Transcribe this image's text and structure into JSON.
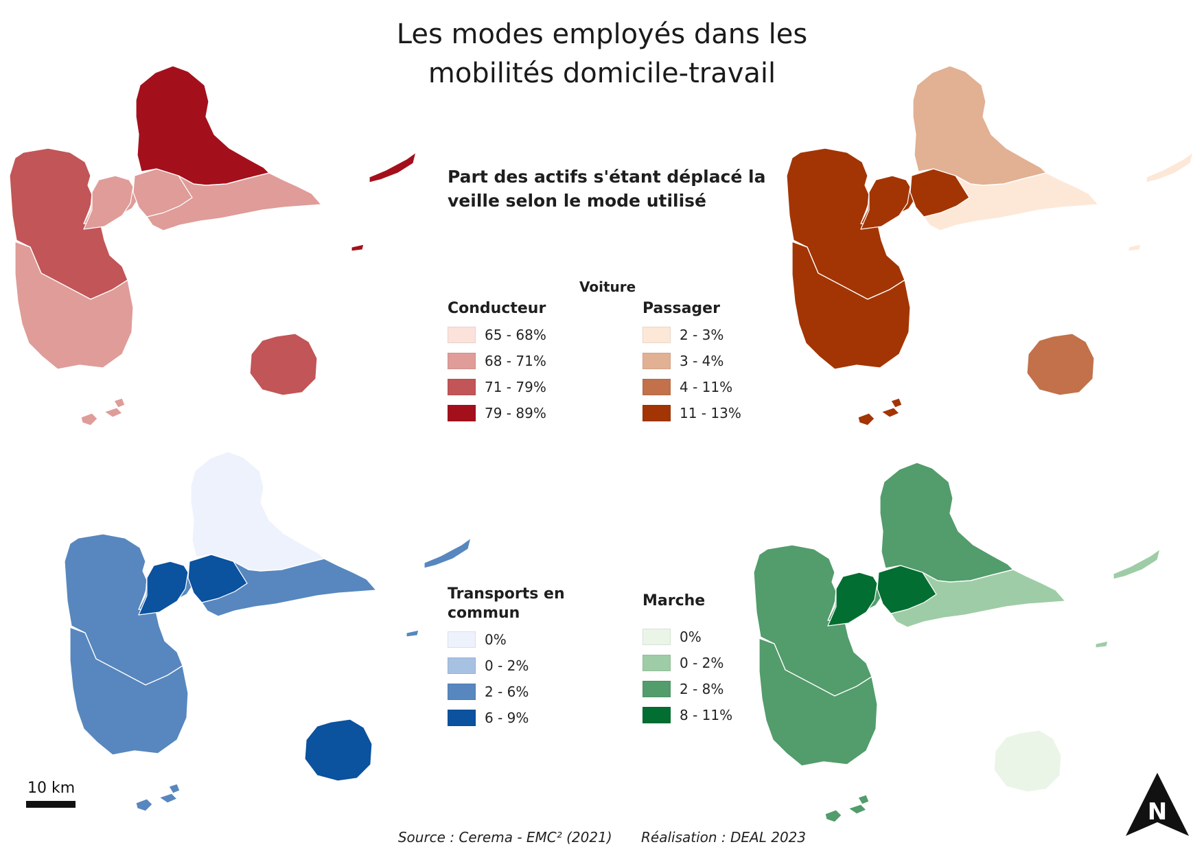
{
  "title_line1": "Les modes employés dans les",
  "title_line2": "mobilités domicile-travail",
  "legend_heading": "Part des actifs s'étant déplacé la veille selon le mode utilisé",
  "group_label": "Voiture",
  "legends": {
    "conducteur": {
      "title": "Conducteur",
      "items": [
        {
          "label": "65 - 68%",
          "color": "#fbe3db"
        },
        {
          "label": "68 - 71%",
          "color": "#df9c98"
        },
        {
          "label": "71 - 79%",
          "color": "#c25557"
        },
        {
          "label": "79 - 89%",
          "color": "#a3101c"
        }
      ]
    },
    "passager": {
      "title": "Passager",
      "items": [
        {
          "label": "2 - 3%",
          "color": "#fde8d8"
        },
        {
          "label": "3 - 4%",
          "color": "#e2b093"
        },
        {
          "label": "4 - 11%",
          "color": "#c2714a"
        },
        {
          "label": "11 - 13%",
          "color": "#a33504"
        }
      ]
    },
    "transports": {
      "title": "Transports en commun",
      "items": [
        {
          "label": "0%",
          "color": "#eef2fc"
        },
        {
          "label": "0 - 2%",
          "color": "#a7c1e2"
        },
        {
          "label": "2 - 6%",
          "color": "#5787be"
        },
        {
          "label": "6 - 9%",
          "color": "#0b529f"
        }
      ]
    },
    "marche": {
      "title": "Marche",
      "items": [
        {
          "label": "0%",
          "color": "#eaf5e8"
        },
        {
          "label": "0 - 2%",
          "color": "#9ecca6"
        },
        {
          "label": "2 - 8%",
          "color": "#539c6c"
        },
        {
          "label": "8 - 11%",
          "color": "#026e31"
        }
      ]
    }
  },
  "maps": [
    {
      "name": "conducteur",
      "colors": {
        "grandeTerre": "#a3101c",
        "north": "#a3101c",
        "southLevel": "#df9c98",
        "westNorth": "#c25557",
        "westSouth": "#df9c98",
        "basseTerreNarrow": "#df9c98",
        "isthmusW": "#df9c98",
        "isthmusE": "#df9c98",
        "desirade": "#a3101c",
        "petiteTerre": "#a3101c",
        "marieGalante": "#c25557",
        "saintes": "#df9c98"
      }
    },
    {
      "name": "passager",
      "colors": {
        "grandeTerre": "#fde8d8",
        "north": "#e2b093",
        "southLevel": "#fde8d8",
        "westNorth": "#a33504",
        "westSouth": "#a33504",
        "basseTerreNarrow": "#a33504",
        "isthmusW": "#a33504",
        "isthmusE": "#a33504",
        "desirade": "#fde8d8",
        "petiteTerre": "#fde8d8",
        "marieGalante": "#c2714a",
        "saintes": "#a33504"
      }
    },
    {
      "name": "transports",
      "colors": {
        "grandeTerre": "#eef2fc",
        "north": "#eef2fc",
        "southLevel": "#5787be",
        "westNorth": "#5787be",
        "westSouth": "#5787be",
        "basseTerreNarrow": "#5787be",
        "isthmusW": "#0b529f",
        "isthmusE": "#0b529f",
        "desirade": "#5787be",
        "petiteTerre": "#5787be",
        "marieGalante": "#0b529f",
        "saintes": "#5787be"
      }
    },
    {
      "name": "marche",
      "colors": {
        "grandeTerre": "#539c6c",
        "north": "#539c6c",
        "southLevel": "#9ecca6",
        "westNorth": "#539c6c",
        "westSouth": "#539c6c",
        "basseTerreNarrow": "#539c6c",
        "isthmusW": "#026e31",
        "isthmusE": "#026e31",
        "desirade": "#9ecca6",
        "petiteTerre": "#9ecca6",
        "marieGalante": "#eaf5e8",
        "saintes": "#539c6c"
      }
    }
  ],
  "scale_label": "10 km",
  "north_letter": "N",
  "source": "Source : Cerema - EMC² (2021)",
  "credit": "Réalisation : DEAL 2023"
}
